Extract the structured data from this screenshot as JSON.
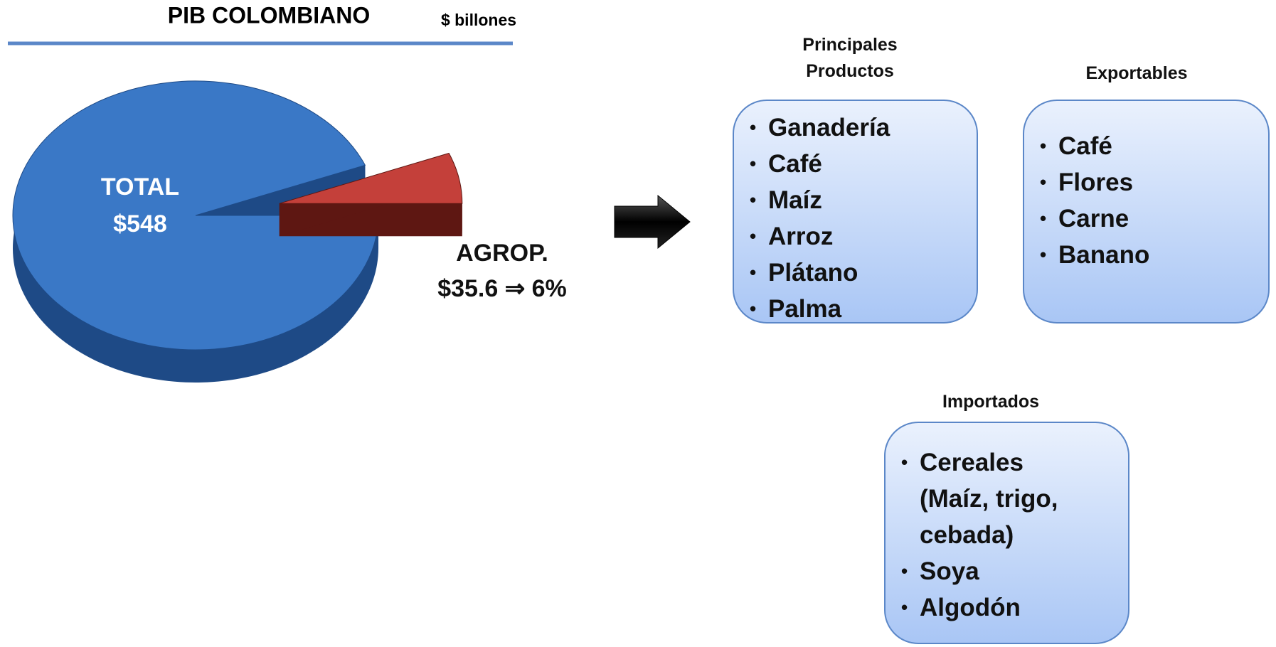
{
  "chart_data": {
    "type": "pie",
    "title": "PIB COLOMBIANO",
    "subtitle": "$ billones",
    "categories": [
      "TOTAL",
      "AGROP."
    ],
    "values": [
      548,
      35.6
    ],
    "value_labels": [
      "$548",
      "$35.6 ⇒ 6%"
    ],
    "colors": [
      "#3a78c6",
      "#c4403a"
    ],
    "side_colors": [
      "#1e4a86",
      "#5e1712"
    ]
  },
  "boxes": [
    {
      "header": "Principales Productos",
      "items": [
        "Ganadería",
        "Café",
        "Maíz",
        "Arroz",
        "Plátano",
        "Palma"
      ]
    },
    {
      "header": "Exportables",
      "items": [
        "Café",
        "Flores",
        "Carne",
        "Banano"
      ]
    },
    {
      "header": "Importados",
      "items": [
        "Cereales (Maíz, trigo, cebada)",
        "Soya",
        "Algodón"
      ]
    }
  ]
}
